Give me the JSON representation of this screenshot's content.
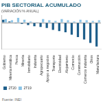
{
  "chart_data": {
    "type": "bar",
    "title": "PIB SECTORIAL ACUMULADO",
    "subtitle": "(VARIACIÓN % ANUAL)",
    "source": "Fuente: INEI",
    "categories": [
      "Gobierno",
      "Minería metálica",
      "Pesca",
      "Minería",
      "Inmobiliario",
      "Industria",
      "Agropecuario",
      "Apoyo a negocios",
      "Transporte",
      "Electricidad",
      "Alojamiento",
      "Comercio",
      "Construcción",
      "Comercio industria",
      "Otros",
      "Manufactura"
    ],
    "series": [
      {
        "name": "2T20",
        "color": "#1f5f8b",
        "values": [
          2.5,
          1.0,
          -0.5,
          -1.0,
          -2.0,
          -3.0,
          -3.5,
          -4.5,
          -6.0,
          -7.0,
          -8.0,
          -10.0,
          -12.0,
          -14.0,
          -17.0,
          -20.0
        ]
      },
      {
        "name": "2T19",
        "color": "#8cc4e6",
        "values": [
          3.0,
          2.0,
          4.0,
          2.5,
          1.0,
          0.5,
          3.0,
          2.0,
          1.5,
          3.0,
          2.0,
          1.0,
          2.5,
          2.0,
          1.5,
          2.0
        ]
      }
    ],
    "ylim": [
      -22,
      6
    ],
    "yticks": [
      0
    ],
    "grid": false,
    "legend": "bottom-left",
    "tick_labels": "x"
  }
}
